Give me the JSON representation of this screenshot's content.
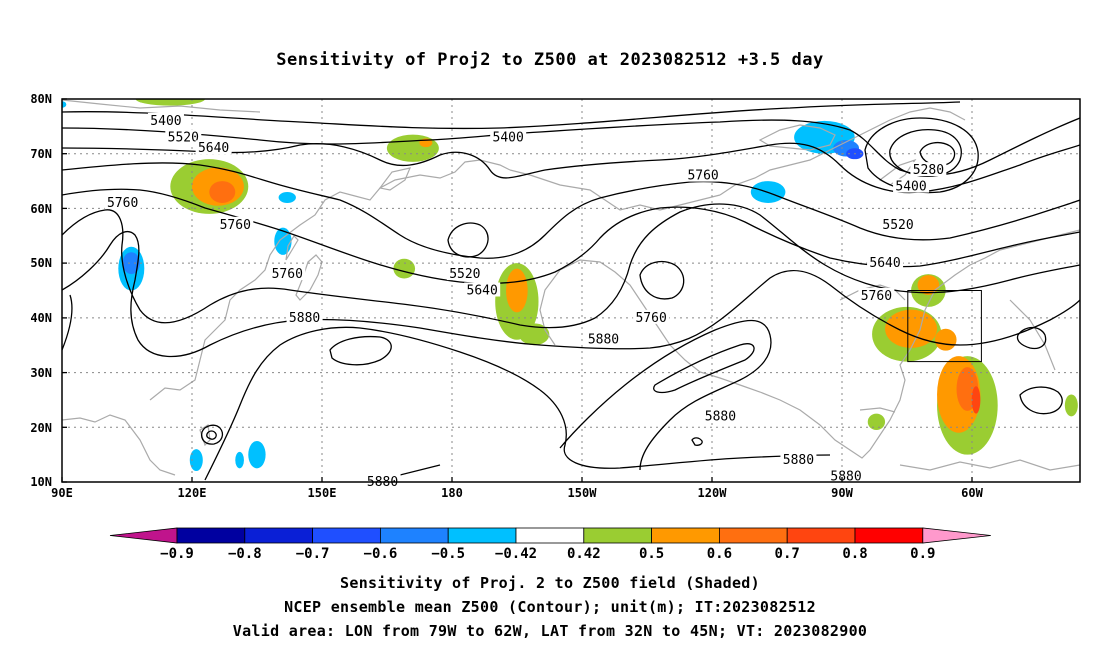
{
  "title": "Sensitivity of Proj2 to Z500 at 2023082512 +3.5 day",
  "footer": {
    "line1": "Sensitivity of Proj. 2 to Z500 field (Shaded)",
    "line2": "NCEP ensemble mean Z500 (Contour); unit(m); IT:2023082512",
    "line3": "Valid area: LON from 79W to 62W, LAT from 32N to 45N; VT: 2023082900"
  },
  "axes": {
    "lat_labels": [
      "80N",
      "70N",
      "60N",
      "50N",
      "40N",
      "30N",
      "20N",
      "10N"
    ],
    "lon_labels": [
      "90E",
      "120E",
      "150E",
      "180",
      "150W",
      "120W",
      "90W",
      "60W"
    ],
    "lon_range_deg_east": [
      90,
      325
    ],
    "lat_range_deg": [
      10,
      80
    ],
    "grid": "dotted"
  },
  "contours": {
    "unit": "m",
    "labels": [
      {
        "value": "5400",
        "lon": 114,
        "lat": 76
      },
      {
        "value": "5520",
        "lon": 118,
        "lat": 73
      },
      {
        "value": "5640",
        "lon": 125,
        "lat": 71
      },
      {
        "value": "5760",
        "lon": 104,
        "lat": 61
      },
      {
        "value": "5760",
        "lon": 130,
        "lat": 57
      },
      {
        "value": "5760",
        "lon": 142,
        "lat": 48
      },
      {
        "value": "5880",
        "lon": 146,
        "lat": 40
      },
      {
        "value": "5400",
        "lon": 193,
        "lat": 73
      },
      {
        "value": "5520",
        "lon": 183,
        "lat": 48
      },
      {
        "value": "5640",
        "lon": 187,
        "lat": 45
      },
      {
        "value": "5760",
        "lon": 238,
        "lat": 66
      },
      {
        "value": "5760",
        "lon": 226,
        "lat": 40
      },
      {
        "value": "5880",
        "lon": 215,
        "lat": 36
      },
      {
        "value": "5880",
        "lon": 242,
        "lat": 22
      },
      {
        "value": "5880",
        "lon": 260,
        "lat": 14
      },
      {
        "value": "5880",
        "lon": 271,
        "lat": 11
      },
      {
        "value": "5880",
        "lon": 164,
        "lat": 10
      },
      {
        "value": "5280",
        "lon": 290,
        "lat": 67
      },
      {
        "value": "5400",
        "lon": 286,
        "lat": 64
      },
      {
        "value": "5520",
        "lon": 283,
        "lat": 57
      },
      {
        "value": "5640",
        "lon": 280,
        "lat": 50
      },
      {
        "value": "5760",
        "lon": 278,
        "lat": 44
      }
    ]
  },
  "colorbar": {
    "labels": [
      "−0.9",
      "−0.8",
      "−0.7",
      "−0.6",
      "−0.5",
      "−0.42",
      "0.42",
      "0.5",
      "0.6",
      "0.7",
      "0.8",
      "0.9"
    ],
    "colors": [
      "#0000a0",
      "#0a1fd6",
      "#1f4fff",
      "#1e82ff",
      "#00c0ff",
      "#ffffff",
      "#9acd32",
      "#ff9900",
      "#ff6f10",
      "#ff4510",
      "#ff0000"
    ],
    "low_tri": "#c0148c",
    "high_tri": "#ff99cc"
  },
  "valid_box": {
    "lon": [
      -79,
      -62
    ],
    "lat": [
      32,
      45
    ]
  },
  "shaded_areas": [
    {
      "level": "0.5",
      "lon": 115,
      "lat": 80,
      "rx": 8,
      "ry": 1.2
    },
    {
      "level": "0.5",
      "lon": 124,
      "lat": 64,
      "rx": 9,
      "ry": 5
    },
    {
      "level": "0.6",
      "lon": 126,
      "lat": 64,
      "rx": 6,
      "ry": 3.5
    },
    {
      "level": "0.7",
      "lon": 127,
      "lat": 63,
      "rx": 3,
      "ry": 2
    },
    {
      "level": "0.5",
      "lon": 171,
      "lat": 71,
      "rx": 6,
      "ry": 2.5
    },
    {
      "level": "0.6",
      "lon": 174,
      "lat": 72,
      "rx": 1.5,
      "ry": 0.8
    },
    {
      "level": "0.5",
      "lon": 169,
      "lat": 49,
      "rx": 2.5,
      "ry": 1.8
    },
    {
      "level": "0.5",
      "lon": 195,
      "lat": 43,
      "rx": 5,
      "ry": 7
    },
    {
      "level": "0.6",
      "lon": 195,
      "lat": 45,
      "rx": 2.5,
      "ry": 4
    },
    {
      "level": "0.5",
      "lon": 199,
      "lat": 37,
      "rx": 3.5,
      "ry": 2
    },
    {
      "level": "0.5",
      "lon": 285,
      "lat": 37,
      "rx": 8,
      "ry": 5
    },
    {
      "level": "0.6",
      "lon": 286,
      "lat": 38,
      "rx": 6,
      "ry": 3.5
    },
    {
      "level": "0.5",
      "lon": 290,
      "lat": 45,
      "rx": 4,
      "ry": 3
    },
    {
      "level": "0.6",
      "lon": 290,
      "lat": 46,
      "rx": 2.5,
      "ry": 1.8
    },
    {
      "level": "0.5",
      "lon": 299,
      "lat": 24,
      "rx": 7,
      "ry": 9
    },
    {
      "level": "0.6",
      "lon": 297,
      "lat": 26,
      "rx": 5,
      "ry": 7
    },
    {
      "level": "0.7",
      "lon": 299,
      "lat": 27,
      "rx": 2.5,
      "ry": 4
    },
    {
      "level": "0.8",
      "lon": 301,
      "lat": 25,
      "rx": 1,
      "ry": 2.5
    },
    {
      "level": "0.6",
      "lon": 294,
      "lat": 36,
      "rx": 2.5,
      "ry": 2
    },
    {
      "level": "0.5",
      "lon": 278,
      "lat": 21,
      "rx": 2,
      "ry": 1.5
    },
    {
      "level": "0.5",
      "lon": 323,
      "lat": 24,
      "rx": 1.5,
      "ry": 2
    },
    {
      "level": "-0.5",
      "lon": 90,
      "lat": 79,
      "rx": 1,
      "ry": 0.6
    },
    {
      "level": "-0.5",
      "lon": 106,
      "lat": 49,
      "rx": 3,
      "ry": 4
    },
    {
      "level": "-0.6",
      "lon": 106,
      "lat": 50,
      "rx": 2,
      "ry": 2
    },
    {
      "level": "-0.5",
      "lon": 142,
      "lat": 62,
      "rx": 2,
      "ry": 1
    },
    {
      "level": "-0.5",
      "lon": 141,
      "lat": 54,
      "rx": 2,
      "ry": 2.5
    },
    {
      "level": "-0.5",
      "lon": 266,
      "lat": 73,
      "rx": 7,
      "ry": 3
    },
    {
      "level": "-0.6",
      "lon": 271,
      "lat": 71,
      "rx": 3,
      "ry": 1.5
    },
    {
      "level": "-0.7",
      "lon": 273,
      "lat": 70,
      "rx": 2,
      "ry": 1
    },
    {
      "level": "-0.5",
      "lon": 253,
      "lat": 63,
      "rx": 4,
      "ry": 2
    },
    {
      "level": "-0.5",
      "lon": 135,
      "lat": 15,
      "rx": 2,
      "ry": 2.5
    },
    {
      "level": "-0.5",
      "lon": 131,
      "lat": 14,
      "rx": 1,
      "ry": 1.5
    },
    {
      "level": "-0.5",
      "lon": 121,
      "lat": 14,
      "rx": 1.5,
      "ry": 2
    }
  ]
}
